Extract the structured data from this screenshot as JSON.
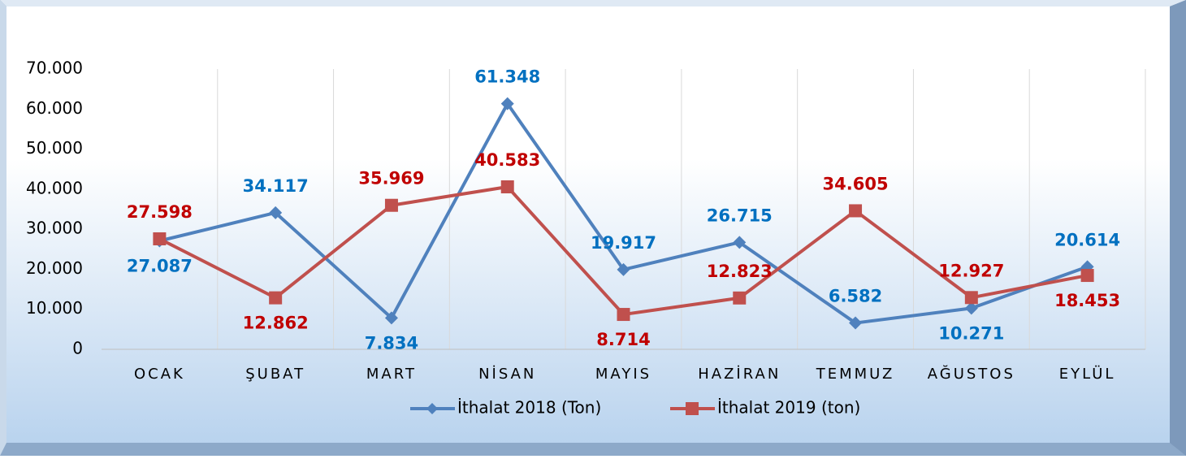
{
  "chart_data": {
    "type": "line",
    "categories": [
      "OCAK",
      "ŞUBAT",
      "MART",
      "NİSAN",
      "MAYIS",
      "HAZİRAN",
      "TEMMUZ",
      "AĞUSTOS",
      "EYLÜL"
    ],
    "series": [
      {
        "name": "İthalat 2018 (Ton)",
        "color": "#4f81bd",
        "label_color": "#0070c0",
        "values": [
          27087,
          34117,
          7834,
          61348,
          19917,
          26715,
          6582,
          10271,
          20614
        ],
        "value_labels": [
          "27.087",
          "34.117",
          "7.834",
          "61.348",
          "19.917",
          "26.715",
          "6.582",
          "10.271",
          "20.614"
        ]
      },
      {
        "name": "İthalat 2019 (ton)",
        "color": "#c0504d",
        "label_color": "#c00000",
        "values": [
          27598,
          12862,
          35969,
          40583,
          8714,
          12823,
          34605,
          12927,
          18453
        ],
        "value_labels": [
          "27.598",
          "12.862",
          "35.969",
          "40.583",
          "8.714",
          "12.823",
          "34.605",
          "12.927",
          "18.453"
        ]
      }
    ],
    "ylim": [
      0,
      70000
    ],
    "yticks": [
      0,
      {
        "value": 10000,
        "label": "10.000"
      },
      {
        "value": 20000,
        "label": "20.000"
      },
      {
        "value": 30000,
        "label": "30.000"
      },
      {
        "value": 40000,
        "label": "40.000"
      },
      {
        "value": 50000,
        "label": "50.000"
      },
      {
        "value": 60000,
        "label": "60.000"
      },
      {
        "value": 70000,
        "label": "70.000"
      }
    ],
    "grid": true,
    "legend": "bottom"
  }
}
